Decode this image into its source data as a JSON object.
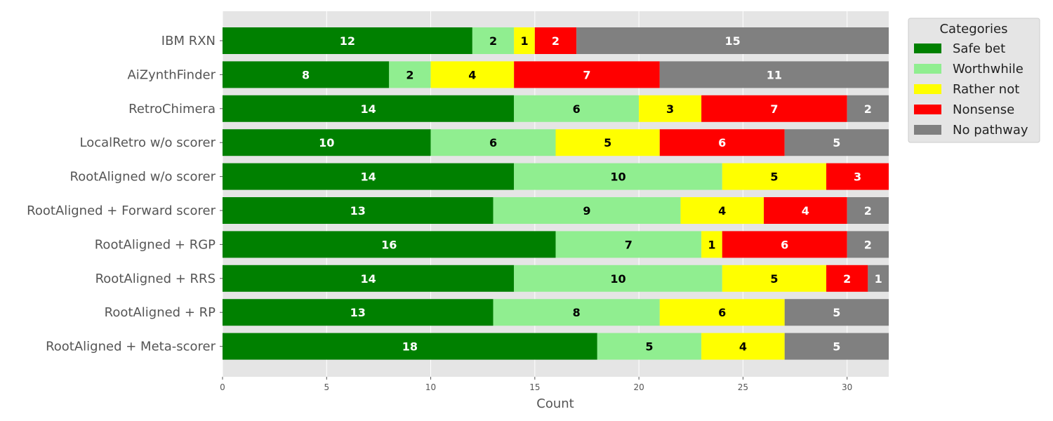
{
  "chart_data": {
    "type": "bar",
    "orientation": "horizontal",
    "stacked": true,
    "categories": [
      "IBM RXN",
      "AiZynthFinder",
      "RetroChimera",
      "LocalRetro w/o scorer",
      "RootAligned w/o scorer",
      "RootAligned + Forward scorer",
      "RootAligned + RGP",
      "RootAligned + RRS",
      "RootAligned + RP",
      "RootAligned + Meta-scorer"
    ],
    "series": [
      {
        "name": "Safe bet",
        "color": "#008000",
        "label_color": "#ffffff",
        "values": [
          12,
          8,
          14,
          10,
          14,
          13,
          16,
          14,
          13,
          18
        ]
      },
      {
        "name": "Worthwhile",
        "color": "#90ee90",
        "label_color": "#000000",
        "values": [
          2,
          2,
          6,
          6,
          10,
          9,
          7,
          10,
          8,
          5
        ]
      },
      {
        "name": "Rather not",
        "color": "#ffff00",
        "label_color": "#000000",
        "values": [
          1,
          4,
          3,
          5,
          5,
          4,
          1,
          5,
          6,
          4
        ]
      },
      {
        "name": "Nonsense",
        "color": "#ff0000",
        "label_color": "#ffffff",
        "values": [
          2,
          7,
          7,
          6,
          3,
          4,
          6,
          2,
          0,
          0
        ]
      },
      {
        "name": "No pathway",
        "color": "#808080",
        "label_color": "#ffffff",
        "values": [
          15,
          11,
          2,
          5,
          0,
          2,
          2,
          1,
          5,
          5
        ]
      }
    ],
    "title": "",
    "xlabel": "Count",
    "ylabel": "",
    "xlim": [
      0,
      32
    ],
    "xticks": [
      0,
      5,
      10,
      15,
      20,
      25,
      30
    ],
    "legend_title": "Categories",
    "legend_position": "outside-top-right",
    "grid": true,
    "background_color": "#e5e5e5"
  }
}
